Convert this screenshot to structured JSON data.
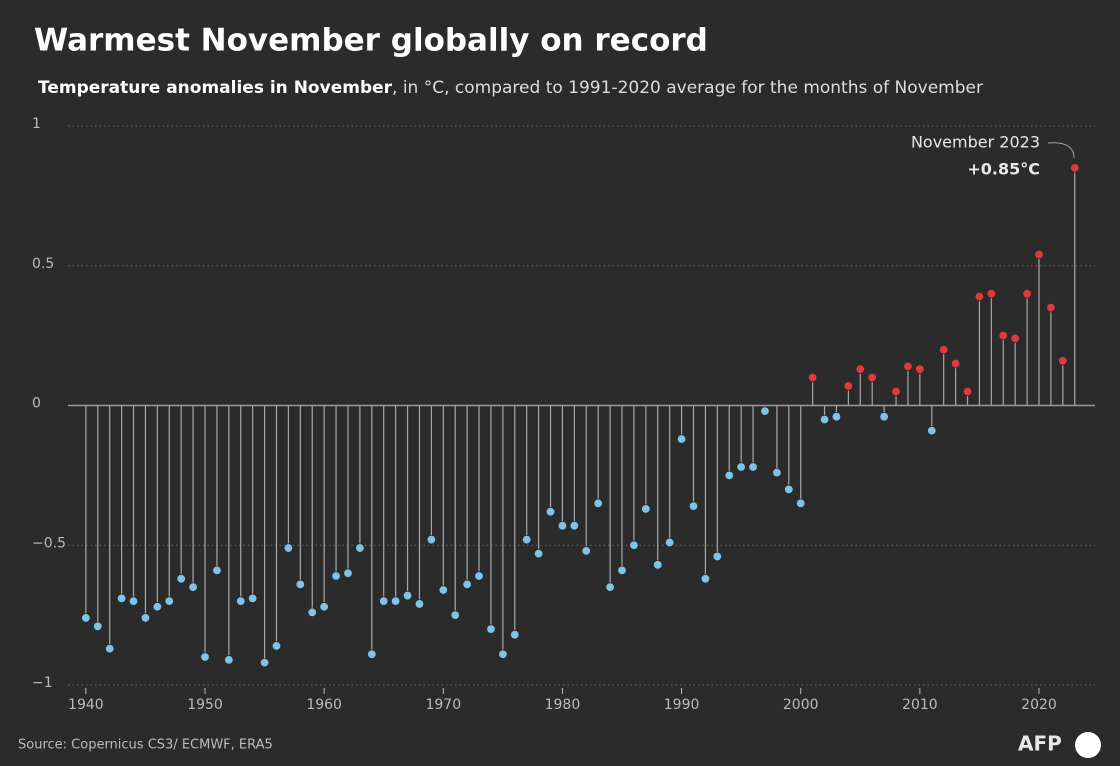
{
  "chart_data": {
    "type": "lollipop",
    "title": "Warmest November globally on record",
    "subtitle_bold": "Temperature anomalies in November",
    "subtitle_rest": ", in °C, compared to 1991-2020 average for the months of November",
    "source": "Source: Copernicus CS3/ ECMWF, ERA5",
    "logo": "AFP",
    "annotation": {
      "title": "November 2023",
      "value_label": "+0.85°C"
    },
    "x": [
      1940,
      1941,
      1942,
      1943,
      1944,
      1945,
      1946,
      1947,
      1948,
      1949,
      1950,
      1951,
      1952,
      1953,
      1954,
      1955,
      1956,
      1957,
      1958,
      1959,
      1960,
      1961,
      1962,
      1963,
      1964,
      1965,
      1966,
      1967,
      1968,
      1969,
      1970,
      1971,
      1972,
      1973,
      1974,
      1975,
      1976,
      1977,
      1978,
      1979,
      1980,
      1981,
      1982,
      1983,
      1984,
      1985,
      1986,
      1987,
      1988,
      1989,
      1990,
      1991,
      1992,
      1993,
      1994,
      1995,
      1996,
      1997,
      1998,
      1999,
      2000,
      2001,
      2002,
      2003,
      2004,
      2005,
      2006,
      2007,
      2008,
      2009,
      2010,
      2011,
      2012,
      2013,
      2014,
      2015,
      2016,
      2017,
      2018,
      2019,
      2020,
      2021,
      2022,
      2023
    ],
    "values": [
      -0.76,
      -0.79,
      -0.87,
      -0.69,
      -0.7,
      -0.76,
      -0.72,
      -0.7,
      -0.62,
      -0.65,
      -0.9,
      -0.59,
      -0.91,
      -0.7,
      -0.69,
      -0.92,
      -0.86,
      -0.51,
      -0.64,
      -0.74,
      -0.72,
      -0.61,
      -0.6,
      -0.51,
      -0.89,
      -0.7,
      -0.7,
      -0.68,
      -0.71,
      -0.48,
      -0.66,
      -0.75,
      -0.64,
      -0.61,
      -0.8,
      -0.89,
      -0.82,
      -0.48,
      -0.53,
      -0.38,
      -0.43,
      -0.43,
      -0.52,
      -0.35,
      -0.65,
      -0.59,
      -0.5,
      -0.37,
      -0.57,
      -0.49,
      -0.12,
      -0.36,
      -0.62,
      -0.54,
      -0.25,
      -0.22,
      -0.22,
      -0.02,
      -0.24,
      -0.3,
      -0.35,
      0.1,
      -0.05,
      -0.04,
      0.07,
      0.13,
      0.1,
      -0.04,
      0.05,
      0.14,
      0.13,
      -0.09,
      0.2,
      0.15,
      0.05,
      0.39,
      0.4,
      0.25,
      0.24,
      0.4,
      0.54,
      0.35,
      0.16,
      0.85
    ],
    "positive_color": "#e0393e",
    "negative_color": "#7fc4e8",
    "stem_color": "#a8a8a8",
    "xlim": [
      1938.5,
      2024.7
    ],
    "xticks": [
      1940,
      1950,
      1960,
      1970,
      1980,
      1990,
      2000,
      2010,
      2020
    ],
    "ylim": [
      -1,
      1
    ],
    "yticks": [
      {
        "value": -1,
        "label": "−1"
      },
      {
        "value": -0.5,
        "label": "−0.5"
      },
      0,
      0.5,
      1
    ],
    "grid": true
  }
}
